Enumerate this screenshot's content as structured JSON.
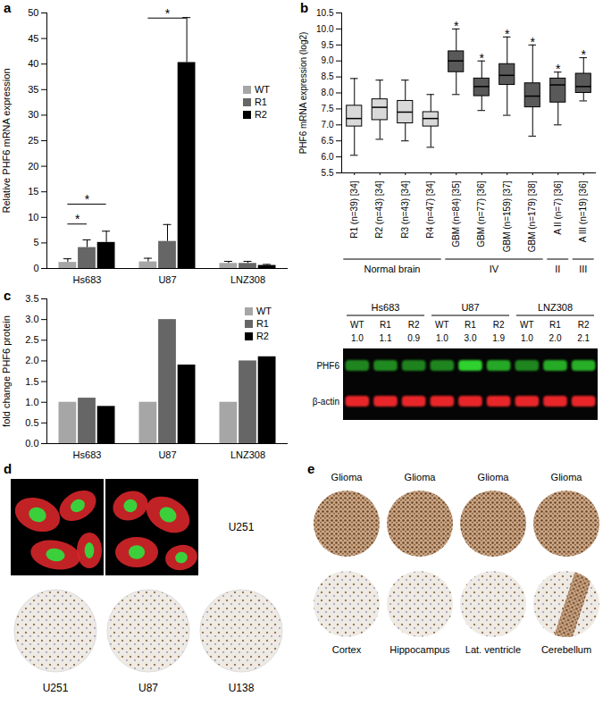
{
  "chart_data": [
    {
      "type": "bar",
      "title": "a",
      "ylabel": "Relative PHF6 mRNA expression",
      "categories": [
        "Hs683",
        "U87",
        "LNZ308"
      ],
      "series": [
        {
          "name": "WT",
          "color": "#a6a6a6",
          "values": [
            1.2,
            1.3,
            1.0
          ],
          "errors": [
            0.7,
            0.7,
            0.4
          ]
        },
        {
          "name": "R1",
          "color": "#666666",
          "values": [
            4.1,
            5.3,
            1.0
          ],
          "errors": [
            1.5,
            3.3,
            0.4
          ]
        },
        {
          "name": "R2",
          "color": "#000000",
          "values": [
            5.1,
            40.3,
            0.6
          ],
          "errors": [
            2.2,
            8.8,
            0.2
          ]
        }
      ],
      "ylim": [
        0,
        50
      ],
      "yticks": [
        0,
        5,
        10,
        15,
        20,
        25,
        30,
        35,
        40,
        45,
        50
      ],
      "legend": "right",
      "annotations": [
        {
          "text": "*",
          "category": "Hs683",
          "from": "WT",
          "to": "R1",
          "y": 8.7
        },
        {
          "text": "*",
          "category": "Hs683",
          "from": "WT",
          "to": "R2",
          "y": 12.6
        },
        {
          "text": "*",
          "category": "U87",
          "from": "WT",
          "to": "R2",
          "y": 49
        }
      ]
    },
    {
      "type": "box",
      "title": "b",
      "ylabel": "PHF6 mRNA expression (log2)",
      "categories": [
        "R1 (n=39) [34]",
        "R2 (n=43) [34]",
        "R3 (n=43) [34]",
        "R4 (n=47) [34]",
        "GBM (n=84) [35]",
        "GBM (n=77) [36]",
        "GBM (n=159) [37]",
        "GBM (n=179) [38]",
        "A II (n=7) [36]",
        "A III (n=19) [36]"
      ],
      "boxes": [
        {
          "min": 6.05,
          "q1": 6.95,
          "median": 7.2,
          "q3": 7.6,
          "max": 8.45
        },
        {
          "min": 6.55,
          "q1": 7.15,
          "median": 7.55,
          "q3": 7.8,
          "max": 8.4
        },
        {
          "min": 6.5,
          "q1": 7.05,
          "median": 7.4,
          "q3": 7.75,
          "max": 8.4
        },
        {
          "min": 6.3,
          "q1": 6.95,
          "median": 7.2,
          "q3": 7.4,
          "max": 7.95
        },
        {
          "min": 7.95,
          "q1": 8.65,
          "median": 9.0,
          "q3": 9.3,
          "max": 10.0
        },
        {
          "min": 7.45,
          "q1": 7.9,
          "median": 8.2,
          "q3": 8.45,
          "max": 9.0
        },
        {
          "min": 7.3,
          "q1": 8.25,
          "median": 8.55,
          "q3": 8.9,
          "max": 9.75
        },
        {
          "min": 6.65,
          "q1": 7.55,
          "median": 7.9,
          "q3": 8.3,
          "max": 9.5
        },
        {
          "min": 7.0,
          "q1": 7.7,
          "median": 8.25,
          "q3": 8.45,
          "max": 8.65
        },
        {
          "min": 7.75,
          "q1": 8.0,
          "median": 8.2,
          "q3": 8.6,
          "max": 9.1
        }
      ],
      "colors": [
        "#d9d9d9",
        "#d9d9d9",
        "#d9d9d9",
        "#d9d9d9",
        "#595959",
        "#595959",
        "#595959",
        "#595959",
        "#595959",
        "#595959"
      ],
      "groups": [
        {
          "label": "Normal brain",
          "from": "R1 (n=39) [34]",
          "to": "R4 (n=47) [34]"
        },
        {
          "label": "IV",
          "from": "GBM (n=84) [35]",
          "to": "GBM (n=179) [38]"
        },
        {
          "label": "II",
          "from": "A II (n=7) [36]",
          "to": "A II (n=7) [36]"
        },
        {
          "label": "III",
          "from": "A III (n=19) [36]",
          "to": "A III (n=19) [36]"
        }
      ],
      "ylim": [
        5.5,
        10.5
      ],
      "yticks": [
        5.5,
        {
          "value": 6,
          "label": "6.0"
        },
        6.5,
        {
          "value": 7,
          "label": "7.0"
        },
        7.5,
        {
          "value": 8,
          "label": "8.0"
        },
        8.5,
        {
          "value": 9,
          "label": "9.0"
        },
        9.5,
        {
          "value": 10,
          "label": "10.0"
        },
        10.5
      ],
      "annotations": [
        {
          "text": "*",
          "category": "GBM (n=84) [35]",
          "y": 10.2
        },
        {
          "text": "*",
          "category": "GBM (n=77) [36]",
          "y": 9.2
        },
        {
          "text": "*",
          "category": "GBM (n=159) [37]",
          "y": 9.95
        },
        {
          "text": "*",
          "category": "GBM (n=179) [38]",
          "y": 9.7
        },
        {
          "text": "*",
          "category": "A II (n=7) [36]",
          "y": 8.85
        },
        {
          "text": "*",
          "category": "A III (n=19) [36]",
          "y": 9.3
        }
      ]
    },
    {
      "type": "bar",
      "title": "c",
      "ylabel": "fold change PHF6 protein",
      "categories": [
        "Hs683",
        "U87",
        "LNZ308"
      ],
      "series": [
        {
          "name": "WT",
          "color": "#a6a6a6",
          "values": [
            1.0,
            1.0,
            1.0
          ]
        },
        {
          "name": "R1",
          "color": "#666666",
          "values": [
            1.1,
            3.0,
            2.0
          ]
        },
        {
          "name": "R2",
          "color": "#000000",
          "values": [
            0.9,
            1.9,
            2.1
          ]
        }
      ],
      "ylim": [
        0,
        3.5
      ],
      "yticks": [
        {
          "value": 0,
          "label": "0.0"
        },
        0.5,
        {
          "value": 1,
          "label": "1.0"
        },
        1.5,
        {
          "value": 2,
          "label": "2.0"
        },
        2.5,
        {
          "value": 3,
          "label": "3.0"
        },
        3.5
      ],
      "legend": "right"
    },
    {
      "type": "blot",
      "groups": [
        "Hs683",
        "U87",
        "LNZ308"
      ],
      "lanes": [
        "WT",
        "R1",
        "R2"
      ],
      "values": [
        [
          1.0,
          1.1,
          0.9
        ],
        [
          1.0,
          3.0,
          1.9
        ],
        [
          1.0,
          2.0,
          2.1
        ]
      ],
      "value_labels": [
        [
          "1.0",
          "1.1",
          "0.9"
        ],
        [
          "1.0",
          "3.0",
          "1.9"
        ],
        [
          "1.0",
          "2.0",
          "2.1"
        ]
      ],
      "rows": [
        "PHF6",
        "β-actin"
      ],
      "colors": [
        "#2fd12f",
        "#e8262a"
      ]
    },
    {
      "type": "image",
      "title": "d",
      "top_label": "U251",
      "core_labels": [
        "U251",
        "U87",
        "U138"
      ]
    },
    {
      "type": "image",
      "title": "e",
      "top_labels": [
        "Glioma",
        "Glioma",
        "Glioma",
        "Glioma"
      ],
      "bottom_labels": [
        "Cortex",
        "Hippocampus",
        "Lat. ventricle",
        "Cerebellum"
      ]
    }
  ]
}
